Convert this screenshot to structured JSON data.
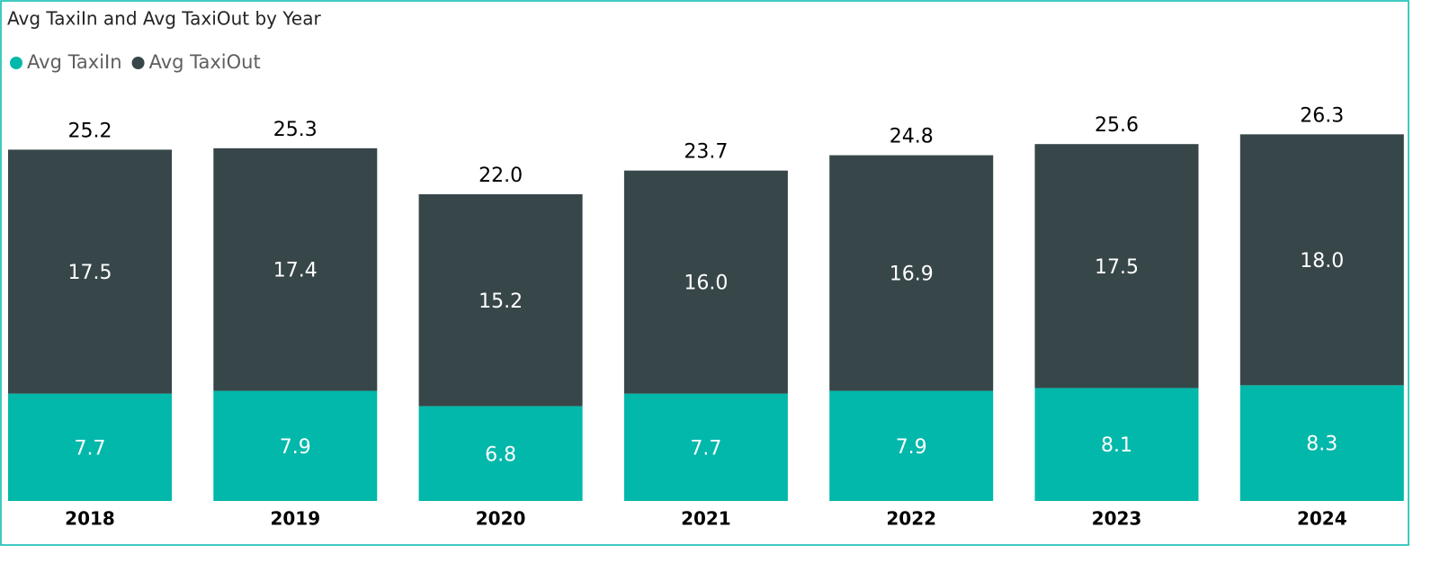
{
  "chart_data": {
    "type": "stacked-bar",
    "title": "Avg TaxiIn and Avg TaxiOut by Year",
    "categories": [
      "2018",
      "2019",
      "2020",
      "2021",
      "2022",
      "2023",
      "2024"
    ],
    "series": [
      {
        "name": "Avg TaxiIn",
        "color": "#01b8aa",
        "values": [
          7.7,
          7.9,
          6.8,
          7.7,
          7.9,
          8.1,
          8.3
        ]
      },
      {
        "name": "Avg TaxiOut",
        "color": "#374649",
        "values": [
          17.5,
          17.4,
          15.2,
          16,
          16.9,
          17.5,
          18
        ],
        "value_labels": [
          "17.5",
          "17.4",
          "15.2",
          "16.0",
          "16.9",
          "17.5",
          "18.0"
        ]
      }
    ],
    "totals": {
      "values": [
        25.2,
        25.3,
        22,
        23.7,
        24.8,
        25.6,
        26.3
      ],
      "value_labels": [
        "25.2",
        "25.3",
        "22.0",
        "23.7",
        "24.8",
        "25.6",
        "26.3"
      ]
    },
    "ylim": [
      0,
      28
    ],
    "legend": "top-left"
  }
}
